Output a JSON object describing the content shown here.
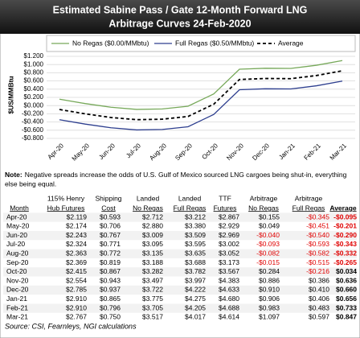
{
  "chart_data": {
    "type": "line",
    "title": [
      "Estimated Sabine Pass / Gate 12-Month Forward LNG",
      "Arbitrage Curves 24-Feb-2020"
    ],
    "y_label": "$US/MMBtu",
    "categories": [
      "Apr-20",
      "May-20",
      "Jun-20",
      "Jul-20",
      "Aug-20",
      "Sep-20",
      "Oct-20",
      "Nov-20",
      "Dec-20",
      "Jan-21",
      "Feb-21",
      "Mar-21"
    ],
    "series": [
      {
        "name": "No Regas ($0.00/MMbtu)",
        "color": "#77a95a",
        "values": [
          0.155,
          0.049,
          -0.04,
          -0.093,
          -0.082,
          -0.015,
          0.284,
          0.886,
          0.91,
          0.906,
          0.983,
          1.097
        ]
      },
      {
        "name": "Full Regas ($0.50/MMbtu)",
        "color": "#2e3f8f",
        "values": [
          -0.345,
          -0.451,
          -0.54,
          -0.593,
          -0.582,
          -0.515,
          -0.216,
          0.386,
          0.41,
          0.406,
          0.483,
          0.597
        ]
      },
      {
        "name": "Average",
        "color": "#000000",
        "dashed": true,
        "values": [
          -0.095,
          -0.201,
          -0.29,
          -0.343,
          -0.332,
          -0.265,
          0.034,
          0.636,
          0.66,
          0.656,
          0.733,
          0.847
        ]
      }
    ],
    "ylim": [
      -0.8,
      1.2
    ],
    "yticks": [
      {
        "value": -0.8,
        "label": "-$0.800"
      },
      {
        "value": -0.6,
        "label": "-$0.600"
      },
      {
        "value": -0.4,
        "label": "-$0.400"
      },
      {
        "value": -0.2,
        "label": "-$0.200"
      },
      {
        "value": 0,
        "label": "$0.000"
      },
      {
        "value": 0.2,
        "label": "$0.200"
      },
      {
        "value": 0.4,
        "label": "$0.400"
      },
      {
        "value": 0.6,
        "label": "$0.600"
      },
      {
        "value": 0.8,
        "label": "$0.800"
      },
      {
        "value": 1.0,
        "label": "$1.000"
      },
      {
        "value": 1.2,
        "label": "$1.200"
      }
    ],
    "grid": true
  },
  "note": {
    "label": "Note:",
    "lines": [
      "Negative spreads increase the odds of U.S. Gulf of Mexico sourced LNG cargoes being shut-in, everything",
      "else being equal."
    ]
  },
  "table": {
    "columns": [
      [
        "Month"
      ],
      [
        "115% Henry",
        "Hub Futures"
      ],
      [
        "Shipping",
        "Cost"
      ],
      [
        "Landed",
        "No Regas"
      ],
      [
        "Landed",
        "Full Regas"
      ],
      [
        "TTF",
        "Futures"
      ],
      [
        "Arbitrage",
        "No Regas"
      ],
      [
        "Arbitrage",
        "Full Regas"
      ],
      [
        "Average"
      ]
    ],
    "rows": [
      [
        "Apr-20",
        "$2.119",
        "$0.593",
        "$2.712",
        "$3.212",
        "$2.867",
        "$0.155",
        "-$0.345",
        "-$0.095"
      ],
      [
        "May-20",
        "$2.174",
        "$0.706",
        "$2.880",
        "$3.380",
        "$2.929",
        "$0.049",
        "-$0.451",
        "-$0.201"
      ],
      [
        "Jun-20",
        "$2.243",
        "$0.767",
        "$3.009",
        "$3.509",
        "$2.969",
        "-$0.040",
        "-$0.540",
        "-$0.290"
      ],
      [
        "Jul-20",
        "$2.324",
        "$0.771",
        "$3.095",
        "$3.595",
        "$3.002",
        "-$0.093",
        "-$0.593",
        "-$0.343"
      ],
      [
        "Aug-20",
        "$2.363",
        "$0.772",
        "$3.135",
        "$3.635",
        "$3.052",
        "-$0.082",
        "-$0.582",
        "-$0.332"
      ],
      [
        "Sep-20",
        "$2.369",
        "$0.819",
        "$3.188",
        "$3.688",
        "$3.173",
        "-$0.015",
        "-$0.515",
        "-$0.265"
      ],
      [
        "Oct-20",
        "$2.415",
        "$0.867",
        "$3.282",
        "$3.782",
        "$3.567",
        "$0.284",
        "-$0.216",
        "$0.034"
      ],
      [
        "Nov-20",
        "$2.554",
        "$0.943",
        "$3.497",
        "$3.997",
        "$4.383",
        "$0.886",
        "$0.386",
        "$0.636"
      ],
      [
        "Dec-20",
        "$2.785",
        "$0.937",
        "$3.722",
        "$4.222",
        "$4.633",
        "$0.910",
        "$0.410",
        "$0.660"
      ],
      [
        "Jan-21",
        "$2.910",
        "$0.865",
        "$3.775",
        "$4.275",
        "$4.680",
        "$0.906",
        "$0.406",
        "$0.656"
      ],
      [
        "Feb-21",
        "$2.910",
        "$0.796",
        "$3.705",
        "$4.205",
        "$4.688",
        "$0.983",
        "$0.483",
        "$0.733"
      ],
      [
        "Mar-21",
        "$2.767",
        "$0.750",
        "$3.517",
        "$4.017",
        "$4.614",
        "$1.097",
        "$0.597",
        "$0.847"
      ]
    ]
  },
  "source": "Source: CSI, Fearnleys, NGI calculations"
}
